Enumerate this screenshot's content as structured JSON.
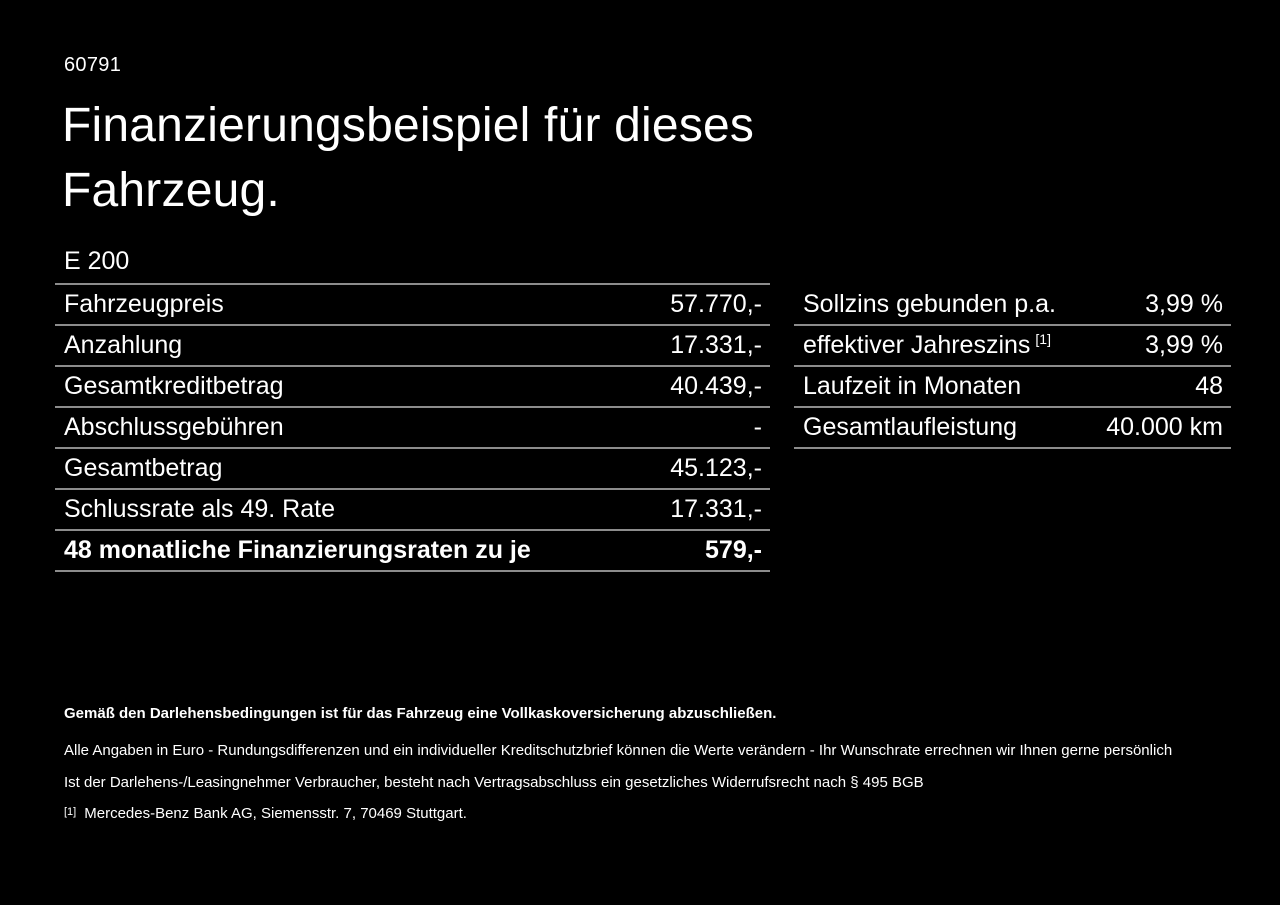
{
  "page": {
    "doc_number": "60791",
    "title_line1": "Finanzierungsbeispiel für dieses",
    "title_line2": "Fahrzeug.",
    "vehicle_model": "E 200"
  },
  "finance_table": {
    "rows": [
      {
        "label": "Fahrzeugpreis",
        "value": "57.770,-"
      },
      {
        "label": "Anzahlung",
        "value": "17.331,-"
      },
      {
        "label": "Gesamtkreditbetrag",
        "value": "40.439,-"
      },
      {
        "label": "Abschlussgebühren",
        "value": "-"
      },
      {
        "label": "Gesamtbetrag",
        "value": "45.123,-"
      },
      {
        "label": "Schlussrate als 49. Rate",
        "value": "17.331,-"
      },
      {
        "label": "48 monatliche Finanzierungsraten zu je",
        "value": "579,-"
      }
    ]
  },
  "conditions_table": {
    "rows": [
      {
        "label": "Sollzins gebunden p.a.",
        "value": "3,99 %"
      },
      {
        "label": "effektiver Jahreszins",
        "footnote_marker": "[1]",
        "value": "3,99 %"
      },
      {
        "label": "Laufzeit in Monaten",
        "value": "48"
      },
      {
        "label": "Gesamtlaufleistung",
        "value": "40.000 km"
      }
    ]
  },
  "footer": {
    "insurance_note": "Gemäß den Darlehensbedingungen ist für das Fahrzeug eine Vollkaskoversicherung abzuschließen.",
    "disclaimer_line1": "Alle Angaben in Euro - Rundungsdifferenzen und ein individueller Kreditschutzbrief können die Werte verändern - Ihr Wunschrate errechnen wir Ihnen gerne persönlich",
    "disclaimer_line2": "Ist der Darlehens-/Leasingnehmer Verbraucher, besteht nach Vertragsabschluss ein gesetzliches Widerrufsrecht nach § 495 BGB",
    "footnote_marker": "[1]",
    "footnote_text": "Mercedes-Benz Bank AG, Siemensstr. 7, 70469 Stuttgart."
  },
  "colors": {
    "background": "#000000",
    "text": "#ffffff",
    "divider": "#8c8c8c"
  }
}
